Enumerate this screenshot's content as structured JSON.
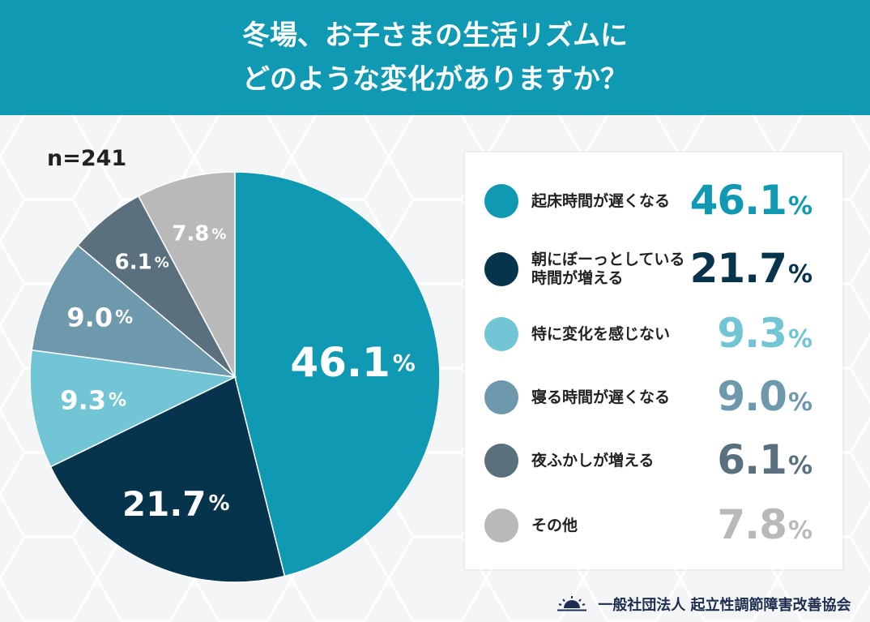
{
  "header": {
    "line1": "冬場、お子さまの生活リズムに",
    "line2": "どのような変化がありますか？"
  },
  "sample": "n=241",
  "percent_sign": "%",
  "footer": {
    "org": "一般社団法人 起立性調節障害改善協会"
  },
  "colors": {
    "header_bg": "#0f99b3"
  },
  "chart_data": {
    "type": "pie",
    "title": "冬場、お子さまの生活リズムにどのような変化がありますか？",
    "sample_size": "n=241",
    "categories": [
      "起床時間が遅くなる",
      "朝にぼーっとしている時間が増える",
      "特に変化を感じない",
      "寝る時間が遅くなる",
      "夜ふかしが増える",
      "その他"
    ],
    "values": [
      46.1,
      21.7,
      9.3,
      9.0,
      6.1,
      7.8
    ],
    "colors": [
      "#0f99b3",
      "#06344d",
      "#72c5d4",
      "#6e98ac",
      "#5b707e",
      "#b9b9b9"
    ],
    "value_labels": [
      "46.1",
      "21.7",
      "9.3",
      "9.0",
      "6.1",
      "7.8"
    ],
    "legend": [
      {
        "lines": [
          "起床時間が遅くなる"
        ]
      },
      {
        "lines": [
          "朝にぼーっとしている",
          "時間が増える"
        ]
      },
      {
        "lines": [
          "特に変化を感じない"
        ]
      },
      {
        "lines": [
          "寝る時間が遅くなる"
        ]
      },
      {
        "lines": [
          "夜ふかしが増える"
        ]
      },
      {
        "lines": [
          "その他"
        ]
      }
    ],
    "legend_position": "right",
    "start": "top, clockwise"
  }
}
